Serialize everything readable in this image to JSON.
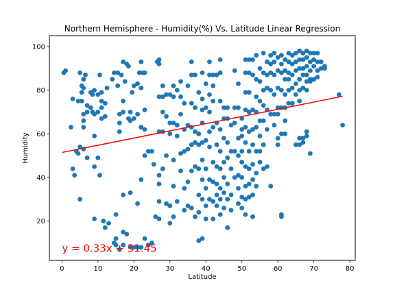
{
  "chart_data": {
    "type": "scatter",
    "title": "Northern Hemisphere - Humidity(%) Vs. Latitude Linear Regression",
    "xlabel": "Latitude",
    "ylabel": "Humidity",
    "xlim": [
      -3.5,
      81.5
    ],
    "ylim": [
      2,
      105
    ],
    "xticks": [
      0,
      10,
      20,
      30,
      40,
      50,
      60,
      70,
      80
    ],
    "yticks": [
      20,
      40,
      60,
      80,
      100
    ],
    "grid": false,
    "colors": {
      "points": "#1f77b4",
      "regression": "#ff0000"
    },
    "regression": {
      "slope": 0.33,
      "intercept": 51.45,
      "x_range": [
        0,
        78
      ],
      "equation": "y = 0.33x + 51.45"
    },
    "points": [
      [
        0.5,
        88
      ],
      [
        1,
        89
      ],
      [
        2.5,
        63
      ],
      [
        3,
        76
      ],
      [
        3,
        44
      ],
      [
        3.5,
        41
      ],
      [
        4,
        52
      ],
      [
        4.5,
        75
      ],
      [
        4.5,
        51
      ],
      [
        5,
        88
      ],
      [
        5,
        54
      ],
      [
        5,
        30
      ],
      [
        5.5,
        82
      ],
      [
        5.5,
        79
      ],
      [
        5.5,
        75
      ],
      [
        6,
        85
      ],
      [
        6,
        81
      ],
      [
        6,
        69
      ],
      [
        6,
        66
      ],
      [
        6,
        63
      ],
      [
        6,
        53
      ],
      [
        6.5,
        87
      ],
      [
        7,
        73
      ],
      [
        7,
        70
      ],
      [
        7,
        49
      ],
      [
        8,
        79
      ],
      [
        8,
        72
      ],
      [
        8.5,
        78
      ],
      [
        8.5,
        70
      ],
      [
        9,
        80
      ],
      [
        9,
        69
      ],
      [
        9,
        59
      ],
      [
        9,
        45
      ],
      [
        9,
        21
      ],
      [
        10,
        78
      ],
      [
        10,
        70
      ],
      [
        10,
        49
      ],
      [
        10.5,
        87
      ],
      [
        10.5,
        41
      ],
      [
        11,
        75
      ],
      [
        11,
        72
      ],
      [
        11,
        67
      ],
      [
        11,
        79
      ],
      [
        11.5,
        20
      ],
      [
        12,
        74
      ],
      [
        12,
        68
      ],
      [
        12,
        17
      ],
      [
        12.5,
        81
      ],
      [
        13,
        19
      ],
      [
        14,
        85
      ],
      [
        14.5,
        88
      ],
      [
        14.5,
        10
      ],
      [
        15,
        23
      ],
      [
        15,
        12
      ],
      [
        15,
        9
      ],
      [
        15.5,
        88
      ],
      [
        15.5,
        82
      ],
      [
        16,
        69
      ],
      [
        16,
        65
      ],
      [
        16,
        61
      ],
      [
        16,
        7
      ],
      [
        16.5,
        87
      ],
      [
        17,
        93
      ],
      [
        17,
        75
      ],
      [
        17,
        70
      ],
      [
        17,
        32
      ],
      [
        17,
        15
      ],
      [
        17,
        9
      ],
      [
        17.5,
        84
      ],
      [
        18,
        92
      ],
      [
        18,
        14
      ],
      [
        18.5,
        91
      ],
      [
        18.5,
        67
      ],
      [
        19,
        66
      ],
      [
        19,
        70
      ],
      [
        19,
        33
      ],
      [
        19,
        8
      ],
      [
        19.5,
        79
      ],
      [
        20,
        82
      ],
      [
        20,
        67
      ],
      [
        20,
        8
      ],
      [
        21,
        83
      ],
      [
        21,
        69
      ],
      [
        21,
        28
      ],
      [
        21,
        8
      ],
      [
        21.5,
        88
      ],
      [
        22,
        93
      ],
      [
        22,
        81
      ],
      [
        22,
        63
      ],
      [
        22,
        39
      ],
      [
        22,
        8
      ],
      [
        22.5,
        88
      ],
      [
        23,
        88
      ],
      [
        23,
        71
      ],
      [
        23,
        62
      ],
      [
        23,
        50
      ],
      [
        23,
        12
      ],
      [
        24,
        52
      ],
      [
        24,
        9
      ],
      [
        25,
        52
      ],
      [
        25,
        10
      ],
      [
        25.5,
        46
      ],
      [
        26,
        22
      ],
      [
        26.5,
        93
      ],
      [
        27,
        94
      ],
      [
        27,
        92
      ],
      [
        27,
        77
      ],
      [
        27,
        61
      ],
      [
        27,
        41
      ],
      [
        27,
        37
      ],
      [
        27,
        29
      ],
      [
        27,
        21
      ],
      [
        28,
        82
      ],
      [
        28,
        77
      ],
      [
        28,
        70
      ],
      [
        28,
        61
      ],
      [
        28,
        44
      ],
      [
        29,
        78
      ],
      [
        29,
        68
      ],
      [
        29,
        50
      ],
      [
        29,
        28
      ],
      [
        30,
        78
      ],
      [
        30,
        65
      ],
      [
        30,
        60
      ],
      [
        30,
        27
      ],
      [
        30,
        19
      ],
      [
        31,
        82
      ],
      [
        31,
        77
      ],
      [
        31,
        65
      ],
      [
        31,
        48
      ],
      [
        31,
        36
      ],
      [
        31,
        22
      ],
      [
        32,
        80
      ],
      [
        32,
        64
      ],
      [
        32,
        59
      ],
      [
        32,
        29
      ],
      [
        33,
        84
      ],
      [
        33,
        77
      ],
      [
        33,
        69
      ],
      [
        33,
        51
      ],
      [
        33,
        43
      ],
      [
        34,
        74
      ],
      [
        34,
        62
      ],
      [
        34,
        52
      ],
      [
        34,
        35
      ],
      [
        34,
        25
      ],
      [
        35,
        82
      ],
      [
        35,
        64
      ],
      [
        35,
        53
      ],
      [
        35,
        38
      ],
      [
        35,
        27
      ],
      [
        36,
        93
      ],
      [
        36,
        87
      ],
      [
        36,
        74
      ],
      [
        36,
        63
      ],
      [
        36,
        55
      ],
      [
        36,
        43
      ],
      [
        36,
        26
      ],
      [
        37,
        87
      ],
      [
        37,
        72
      ],
      [
        37,
        61
      ],
      [
        37,
        56
      ],
      [
        37,
        45
      ],
      [
        37,
        22
      ],
      [
        38,
        79
      ],
      [
        38,
        60
      ],
      [
        38,
        55
      ],
      [
        38,
        44
      ],
      [
        38,
        32
      ],
      [
        38,
        24
      ],
      [
        38,
        11
      ],
      [
        39,
        88
      ],
      [
        39,
        76
      ],
      [
        39,
        71
      ],
      [
        39,
        65
      ],
      [
        39,
        56
      ],
      [
        39,
        48
      ],
      [
        39,
        39
      ],
      [
        39,
        30
      ],
      [
        39,
        12
      ],
      [
        40,
        83
      ],
      [
        40,
        72
      ],
      [
        40,
        57
      ],
      [
        40,
        44
      ],
      [
        40,
        35
      ],
      [
        40,
        27
      ],
      [
        40,
        21
      ],
      [
        41,
        93
      ],
      [
        41,
        87
      ],
      [
        41,
        78
      ],
      [
        41,
        70
      ],
      [
        41,
        61
      ],
      [
        41,
        54
      ],
      [
        41,
        39
      ],
      [
        41,
        30
      ],
      [
        42,
        87
      ],
      [
        42,
        82
      ],
      [
        42,
        75
      ],
      [
        42,
        63
      ],
      [
        42,
        47
      ],
      [
        42,
        38
      ],
      [
        42,
        29
      ],
      [
        42,
        21
      ],
      [
        43,
        87
      ],
      [
        43,
        65
      ],
      [
        43,
        55
      ],
      [
        43,
        45
      ],
      [
        43,
        37
      ],
      [
        43,
        32
      ],
      [
        43,
        27
      ],
      [
        44,
        94
      ],
      [
        44,
        88
      ],
      [
        44,
        75
      ],
      [
        44,
        62
      ],
      [
        44,
        52
      ],
      [
        44,
        44
      ],
      [
        44,
        35
      ],
      [
        44,
        30
      ],
      [
        44,
        23
      ],
      [
        45,
        72
      ],
      [
        45,
        67
      ],
      [
        45,
        58
      ],
      [
        45,
        47
      ],
      [
        45,
        40
      ],
      [
        45,
        33
      ],
      [
        45,
        26
      ],
      [
        46,
        72
      ],
      [
        46,
        67
      ],
      [
        46,
        56
      ],
      [
        46,
        49
      ],
      [
        46,
        37
      ],
      [
        46,
        30
      ],
      [
        46,
        17
      ],
      [
        47,
        64
      ],
      [
        47,
        52
      ],
      [
        47,
        44
      ],
      [
        47,
        32
      ],
      [
        47,
        25
      ],
      [
        48,
        89
      ],
      [
        48,
        72
      ],
      [
        48,
        65
      ],
      [
        48,
        52
      ],
      [
        48,
        40
      ],
      [
        49,
        83
      ],
      [
        49,
        72
      ],
      [
        49,
        58
      ],
      [
        49,
        50
      ],
      [
        49,
        41
      ],
      [
        49,
        35
      ],
      [
        49,
        28
      ],
      [
        50,
        67
      ],
      [
        50,
        62
      ],
      [
        50,
        59
      ],
      [
        50,
        52
      ],
      [
        50,
        47
      ],
      [
        50,
        40
      ],
      [
        50,
        31
      ],
      [
        50,
        26
      ],
      [
        51,
        94
      ],
      [
        51,
        88
      ],
      [
        51,
        79
      ],
      [
        51,
        71
      ],
      [
        51,
        63
      ],
      [
        51,
        56
      ],
      [
        51,
        45
      ],
      [
        51,
        36
      ],
      [
        51,
        30
      ],
      [
        51,
        23
      ],
      [
        52,
        94
      ],
      [
        52,
        88
      ],
      [
        52,
        79
      ],
      [
        52,
        70
      ],
      [
        52,
        61
      ],
      [
        52,
        52
      ],
      [
        52,
        44
      ],
      [
        52,
        37
      ],
      [
        52,
        31
      ],
      [
        53,
        94
      ],
      [
        53,
        87
      ],
      [
        53,
        71
      ],
      [
        53,
        62
      ],
      [
        53,
        55
      ],
      [
        53,
        46
      ],
      [
        53,
        39
      ],
      [
        53,
        32
      ],
      [
        53,
        22
      ],
      [
        54,
        96
      ],
      [
        54,
        85
      ],
      [
        54,
        77
      ],
      [
        54,
        70
      ],
      [
        54,
        63
      ],
      [
        54,
        52
      ],
      [
        54,
        42
      ],
      [
        54,
        36
      ],
      [
        55,
        90
      ],
      [
        55,
        84
      ],
      [
        55,
        75
      ],
      [
        55,
        66
      ],
      [
        55,
        59
      ],
      [
        55,
        52
      ],
      [
        55,
        47
      ],
      [
        56,
        97
      ],
      [
        56,
        88
      ],
      [
        56,
        80
      ],
      [
        56,
        73
      ],
      [
        56,
        66
      ],
      [
        56,
        55
      ],
      [
        56,
        44
      ],
      [
        57,
        93
      ],
      [
        57,
        87
      ],
      [
        57,
        81
      ],
      [
        57,
        71
      ],
      [
        57,
        62
      ],
      [
        57,
        45
      ],
      [
        58,
        96
      ],
      [
        58,
        92
      ],
      [
        58,
        88
      ],
      [
        58,
        80
      ],
      [
        58,
        69
      ],
      [
        58,
        36
      ],
      [
        59,
        97
      ],
      [
        59,
        93
      ],
      [
        59,
        87
      ],
      [
        59,
        78
      ],
      [
        59,
        69
      ],
      [
        59,
        64
      ],
      [
        60,
        95
      ],
      [
        60,
        89
      ],
      [
        60,
        81
      ],
      [
        60,
        72
      ],
      [
        60,
        69
      ],
      [
        60,
        58
      ],
      [
        60,
        55
      ],
      [
        61,
        96
      ],
      [
        61,
        92
      ],
      [
        61,
        88
      ],
      [
        61,
        80
      ],
      [
        61,
        72
      ],
      [
        61,
        60
      ],
      [
        61,
        23
      ],
      [
        61,
        22
      ],
      [
        62,
        94
      ],
      [
        62,
        89
      ],
      [
        62,
        85
      ],
      [
        62,
        78
      ],
      [
        62,
        72
      ],
      [
        62,
        66
      ],
      [
        62,
        60
      ],
      [
        63,
        97
      ],
      [
        63,
        93
      ],
      [
        63,
        88
      ],
      [
        63,
        85
      ],
      [
        63,
        80
      ],
      [
        63,
        74
      ],
      [
        64,
        96
      ],
      [
        64,
        92
      ],
      [
        64,
        87
      ],
      [
        64,
        81
      ],
      [
        64,
        74
      ],
      [
        65,
        97
      ],
      [
        65,
        93
      ],
      [
        65,
        89
      ],
      [
        65,
        83
      ],
      [
        65,
        78
      ],
      [
        65,
        55
      ],
      [
        66,
        98
      ],
      [
        66,
        94
      ],
      [
        66,
        90
      ],
      [
        66,
        85
      ],
      [
        66,
        80
      ],
      [
        66,
        75
      ],
      [
        66,
        58
      ],
      [
        66,
        55
      ],
      [
        67,
        97
      ],
      [
        67,
        94
      ],
      [
        67,
        90
      ],
      [
        67,
        87
      ],
      [
        67,
        81
      ],
      [
        67,
        58
      ],
      [
        67,
        56
      ],
      [
        68,
        98
      ],
      [
        68,
        95
      ],
      [
        68,
        91
      ],
      [
        68,
        87
      ],
      [
        68,
        84
      ],
      [
        68,
        80
      ],
      [
        68,
        61
      ],
      [
        68,
        59
      ],
      [
        69,
        97
      ],
      [
        69,
        93
      ],
      [
        69,
        89
      ],
      [
        69,
        85
      ],
      [
        69,
        84
      ],
      [
        69,
        51
      ],
      [
        70,
        97
      ],
      [
        70,
        94
      ],
      [
        70,
        91
      ],
      [
        70,
        85
      ],
      [
        71,
        97
      ],
      [
        71,
        93
      ],
      [
        71,
        89
      ],
      [
        71,
        86
      ],
      [
        72,
        93
      ],
      [
        72,
        90
      ],
      [
        73,
        91
      ],
      [
        73,
        90
      ],
      [
        77,
        78
      ],
      [
        78,
        64
      ]
    ],
    "annotations": [
      {
        "text": "y = 0.33x + 51.45",
        "x": 0,
        "y": 7.5
      }
    ]
  }
}
